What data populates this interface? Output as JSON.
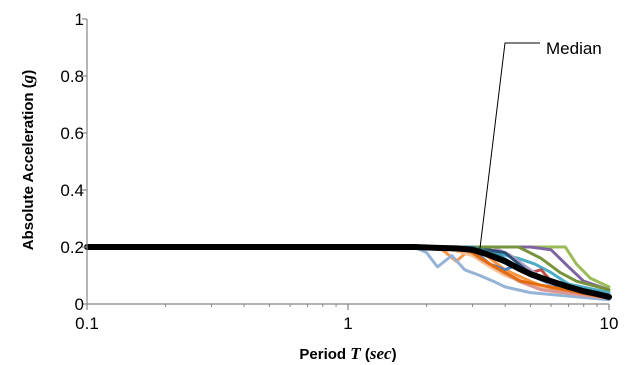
{
  "chart_data": {
    "type": "line",
    "xlabel": {
      "prefix": "Period ",
      "var": "T",
      "mid": " (",
      "unit": "sec",
      "suffix": ")"
    },
    "ylabel": {
      "prefix": "Absolute Acceleration (",
      "var": "g",
      "suffix": ")"
    },
    "xscale": "log",
    "xlim": [
      0.1,
      10
    ],
    "ylim": [
      0,
      1
    ],
    "x_ticks": [
      "0.1",
      "1",
      "10"
    ],
    "y_ticks": [
      "0",
      "0.2",
      "0.4",
      "0.6",
      "0.8",
      "1"
    ],
    "grid": false,
    "legend": "none",
    "annotation": {
      "text": "Median",
      "x": 3.2,
      "y": 0.19
    },
    "median": {
      "color": "#000000",
      "x": [
        0.1,
        1.0,
        1.8,
        2.2,
        2.6,
        3.0,
        3.4,
        4.0,
        4.5,
        5.0,
        6.0,
        7.0,
        8.0,
        9.0,
        10.0
      ],
      "y": [
        0.2,
        0.2,
        0.2,
        0.197,
        0.195,
        0.19,
        0.175,
        0.15,
        0.125,
        0.105,
        0.08,
        0.06,
        0.045,
        0.035,
        0.025
      ]
    },
    "series": [
      {
        "color": "#9bbb59",
        "x": [
          0.1,
          1.8,
          3.0,
          5.0,
          6.8,
          7.5,
          8.5,
          10.0
        ],
        "y": [
          0.2,
          0.2,
          0.2,
          0.2,
          0.2,
          0.14,
          0.09,
          0.06
        ]
      },
      {
        "color": "#8064a2",
        "x": [
          0.1,
          1.8,
          3.0,
          5.0,
          6.0,
          7.0,
          8.0,
          10.0
        ],
        "y": [
          0.2,
          0.2,
          0.2,
          0.2,
          0.19,
          0.13,
          0.08,
          0.05
        ]
      },
      {
        "color": "#4bacc6",
        "x": [
          0.1,
          1.8,
          3.0,
          4.5,
          5.2,
          6.0,
          7.0,
          10.0
        ],
        "y": [
          0.2,
          0.2,
          0.2,
          0.16,
          0.14,
          0.11,
          0.07,
          0.04
        ]
      },
      {
        "color": "#f79646",
        "x": [
          0.1,
          1.8,
          2.3,
          2.6,
          3.0,
          3.5,
          4.0,
          5.0,
          6.0,
          10.0
        ],
        "y": [
          0.2,
          0.2,
          0.19,
          0.15,
          0.2,
          0.16,
          0.12,
          0.08,
          0.05,
          0.02
        ]
      },
      {
        "color": "#c0504d",
        "x": [
          0.1,
          1.8,
          3.0,
          4.0,
          5.0,
          5.5,
          6.0,
          7.0,
          10.0
        ],
        "y": [
          0.2,
          0.2,
          0.2,
          0.15,
          0.11,
          0.12,
          0.08,
          0.05,
          0.03
        ]
      },
      {
        "color": "#4f81bd",
        "x": [
          0.1,
          1.8,
          3.0,
          3.5,
          4.0,
          4.5,
          5.0,
          6.0,
          10.0
        ],
        "y": [
          0.2,
          0.2,
          0.19,
          0.14,
          0.12,
          0.14,
          0.1,
          0.07,
          0.03
        ]
      },
      {
        "color": "#95b3d7",
        "x": [
          0.1,
          1.8,
          2.0,
          2.2,
          2.5,
          2.8,
          3.2,
          3.6,
          4.0,
          5.0,
          10.0
        ],
        "y": [
          0.2,
          0.2,
          0.18,
          0.13,
          0.17,
          0.12,
          0.1,
          0.08,
          0.06,
          0.04,
          0.015
        ]
      },
      {
        "color": "#fac090",
        "x": [
          0.1,
          1.8,
          2.5,
          3.0,
          3.5,
          4.0,
          5.0,
          6.0,
          10.0
        ],
        "y": [
          0.2,
          0.2,
          0.19,
          0.17,
          0.13,
          0.1,
          0.07,
          0.045,
          0.02
        ]
      },
      {
        "color": "#b3a2c7",
        "x": [
          0.1,
          1.8,
          3.0,
          3.6,
          4.2,
          5.0,
          6.0,
          10.0
        ],
        "y": [
          0.2,
          0.2,
          0.2,
          0.2,
          0.17,
          0.12,
          0.07,
          0.03
        ]
      },
      {
        "color": "#2c4d75",
        "x": [
          0.1,
          1.8,
          3.0,
          4.0,
          4.8,
          5.5,
          6.5,
          10.0
        ],
        "y": [
          0.2,
          0.2,
          0.2,
          0.18,
          0.12,
          0.09,
          0.06,
          0.025
        ]
      },
      {
        "color": "#d99694",
        "x": [
          0.1,
          1.8,
          2.8,
          3.2,
          3.8,
          4.5,
          5.5,
          10.0
        ],
        "y": [
          0.2,
          0.2,
          0.2,
          0.16,
          0.12,
          0.08,
          0.05,
          0.02
        ]
      },
      {
        "color": "#77933c",
        "x": [
          0.1,
          1.8,
          3.0,
          4.5,
          5.5,
          6.5,
          7.5,
          10.0
        ],
        "y": [
          0.2,
          0.2,
          0.2,
          0.2,
          0.16,
          0.11,
          0.08,
          0.05
        ]
      },
      {
        "color": "#31859c",
        "x": [
          0.1,
          1.8,
          3.0,
          3.8,
          4.5,
          5.5,
          7.0,
          10.0
        ],
        "y": [
          0.2,
          0.2,
          0.2,
          0.17,
          0.13,
          0.09,
          0.05,
          0.02
        ]
      },
      {
        "color": "#e46c0a",
        "x": [
          0.1,
          1.8,
          2.6,
          3.0,
          3.5,
          4.0,
          4.6,
          10.0
        ],
        "y": [
          0.2,
          0.2,
          0.2,
          0.18,
          0.14,
          0.11,
          0.08,
          0.02
        ]
      }
    ]
  }
}
